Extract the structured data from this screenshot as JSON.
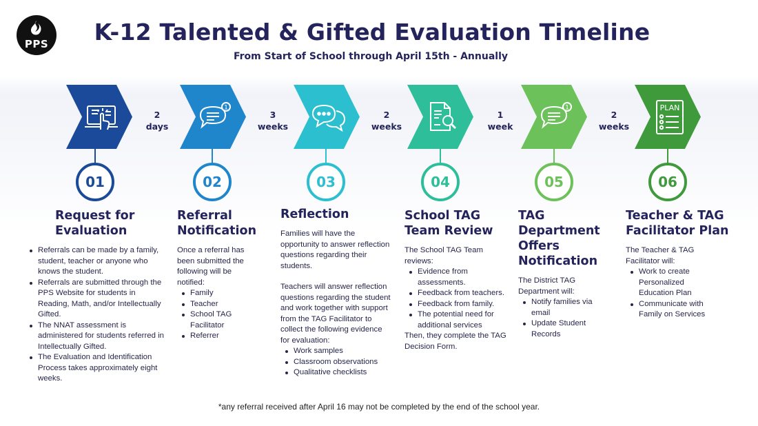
{
  "header": {
    "logo_text": "PPS",
    "title": "K-12 Talented & Gifted Evaluation Timeline",
    "subtitle": "From Start of School through April 15th - Annually"
  },
  "colors": [
    "#1a4a99",
    "#1f86cc",
    "#2cbfcf",
    "#2ebf9a",
    "#6cc15a",
    "#3f9a3c"
  ],
  "durations": [
    {
      "value": "2",
      "unit": "days"
    },
    {
      "value": "3",
      "unit": "weeks"
    },
    {
      "value": "2",
      "unit": "weeks"
    },
    {
      "value": "1",
      "unit": "week"
    },
    {
      "value": "2",
      "unit": "weeks"
    }
  ],
  "steps": [
    {
      "number": "01",
      "icon": "hand-tap-screen-icon",
      "title": "Request for Evaluation",
      "bullets": [
        "Referrals can be made by a family, student, teacher or anyone who knows the student.",
        "Referrals are submitted through the PPS Website for students in Reading, Math, and/or Intellectually Gifted.",
        "The NNAT assessment is administered for students referred in Intellectually Gifted.",
        "The Evaluation and Identification Process takes approximately eight weeks."
      ]
    },
    {
      "number": "02",
      "icon": "chat-notification-icon",
      "title": "Referral Notification",
      "intro": "Once a referral has been submitted the following will be notified:",
      "bullets": [
        "Family",
        "Teacher",
        "School TAG Facilitator",
        "Referrer"
      ]
    },
    {
      "number": "03",
      "icon": "chat-bubbles-icon",
      "title": "Reflection",
      "intro": "Families will have the opportunity to answer reflection questions regarding their students.",
      "intro2": "Teachers will answer reflection questions regarding the student and work together with support from the TAG Facilitator to collect the following evidence for evaluation:",
      "bullets": [
        "Work samples",
        "Classroom observations",
        "Qualitative checklists"
      ]
    },
    {
      "number": "04",
      "icon": "document-search-icon",
      "title": "School TAG Team Review",
      "intro": "The School TAG Team reviews:",
      "bullets": [
        "Evidence from assessments.",
        "Feedback from teachers.",
        "Feedback from family.",
        "The potential need for additional services"
      ],
      "outro": "Then, they complete the TAG Decision Form."
    },
    {
      "number": "05",
      "icon": "chat-notification-icon",
      "title": "TAG Department Offers Notification",
      "intro": "The District TAG Department will:",
      "bullets": [
        "Notify families via email",
        "Update Student Records"
      ]
    },
    {
      "number": "06",
      "icon": "plan-checklist-icon",
      "title": "Teacher & TAG Facilitator Plan",
      "intro": "The Teacher & TAG Facilitator will:",
      "bullets": [
        "Work to create Personalized Education Plan",
        "Communicate with Family on Services"
      ]
    }
  ],
  "plan_icon_label": "PLAN",
  "chat_badge": "1",
  "footnote": "*any referral received after April 16 may not be completed by the end of the school year."
}
